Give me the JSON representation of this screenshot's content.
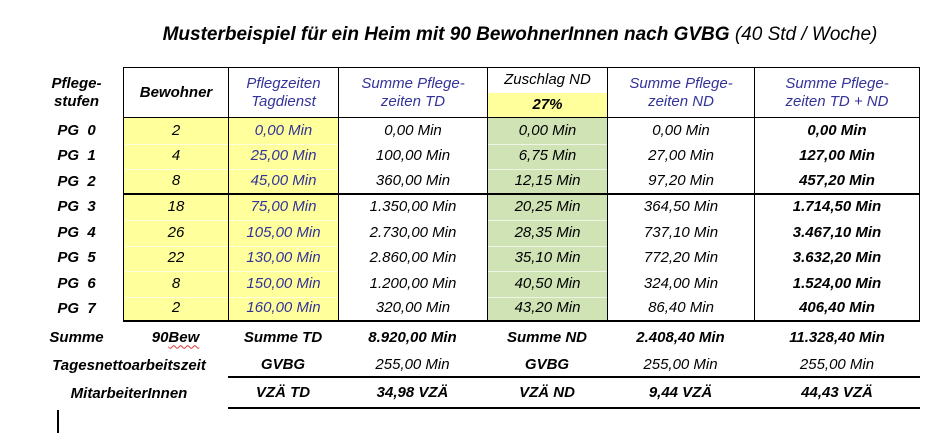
{
  "title": {
    "main": "Musterbeispiel für ein Heim mit 90 BewohnerInnen nach GVBG",
    "suffix": " (40 Std / Woche)"
  },
  "colors": {
    "highlight_yellow": "#FFFF9C",
    "highlight_green": "#CFE3B4",
    "header_blue_text": "#333399",
    "spellcheck_red": "#E03434",
    "border_black": "#000000"
  },
  "table": {
    "header": {
      "pflegestufen": [
        "Pflege-",
        "stufen"
      ],
      "bewohner": "Bewohner",
      "pflegezeiten": [
        "Pflegzeiten",
        "Tagdienst"
      ],
      "summe_td": [
        "Summe Pflege-",
        "zeiten TD"
      ],
      "zuschlag_nd": "Zuschlag ND",
      "zuschlag_pct": "27%",
      "summe_nd": [
        "Summe Pflege-",
        "zeiten ND"
      ],
      "summe_td_nd": [
        "Summe Pflege-",
        "zeiten TD + ND"
      ]
    },
    "rows": [
      {
        "pg": "PG  0",
        "bewohner": "2",
        "pflegezeit": "0,00 Min",
        "summe_td": "0,00 Min",
        "zuschlag": "0,00 Min",
        "summe_nd": "0,00 Min",
        "summe_td_nd": "0,00 Min"
      },
      {
        "pg": "PG  1",
        "bewohner": "4",
        "pflegezeit": "25,00 Min",
        "summe_td": "100,00 Min",
        "zuschlag": "6,75 Min",
        "summe_nd": "27,00 Min",
        "summe_td_nd": "127,00 Min"
      },
      {
        "pg": "PG  2",
        "bewohner": "8",
        "pflegezeit": "45,00 Min",
        "summe_td": "360,00 Min",
        "zuschlag": "12,15 Min",
        "summe_nd": "97,20 Min",
        "summe_td_nd": "457,20 Min"
      },
      {
        "pg": "PG  3",
        "bewohner": "18",
        "pflegezeit": "75,00 Min",
        "summe_td": "1.350,00 Min",
        "zuschlag": "20,25 Min",
        "summe_nd": "364,50 Min",
        "summe_td_nd": "1.714,50 Min"
      },
      {
        "pg": "PG  4",
        "bewohner": "26",
        "pflegezeit": "105,00 Min",
        "summe_td": "2.730,00 Min",
        "zuschlag": "28,35 Min",
        "summe_nd": "737,10 Min",
        "summe_td_nd": "3.467,10 Min"
      },
      {
        "pg": "PG  5",
        "bewohner": "22",
        "pflegezeit": "130,00 Min",
        "summe_td": "2.860,00 Min",
        "zuschlag": "35,10 Min",
        "summe_nd": "772,20 Min",
        "summe_td_nd": "3.632,20 Min"
      },
      {
        "pg": "PG  6",
        "bewohner": "8",
        "pflegezeit": "150,00 Min",
        "summe_td": "1.200,00 Min",
        "zuschlag": "40,50 Min",
        "summe_nd": "324,00 Min",
        "summe_td_nd": "1.524,00 Min"
      },
      {
        "pg": "PG  7",
        "bewohner": "2",
        "pflegezeit": "160,00 Min",
        "summe_td": "320,00 Min",
        "zuschlag": "43,20 Min",
        "summe_nd": "86,40 Min",
        "summe_td_nd": "406,40 Min"
      }
    ],
    "footer": {
      "summe_row": {
        "label": "Summe",
        "bewohner_value": "90 ",
        "bewohner_unit": "Bew",
        "td_label": "Summe TD",
        "td_value": "8.920,00 Min",
        "nd_label": "Summe ND",
        "nd_value": "2.408,40 Min",
        "total_value": "11.328,40 Min"
      },
      "tagesnetto_row": {
        "label": "Tagesnettoarbeitszeit",
        "td_label": "GVBG",
        "td_value": "255,00 Min",
        "nd_label": "GVBG",
        "nd_value": "255,00 Min",
        "total_value": "255,00 Min"
      },
      "vza_row": {
        "label": "MitarbeiterInnen",
        "td_label": "VZÄ TD",
        "td_value": "34,98 VZÄ",
        "nd_label": "VZÄ ND",
        "nd_value": "9,44 VZÄ",
        "total_value": "44,43 VZÄ"
      }
    }
  }
}
